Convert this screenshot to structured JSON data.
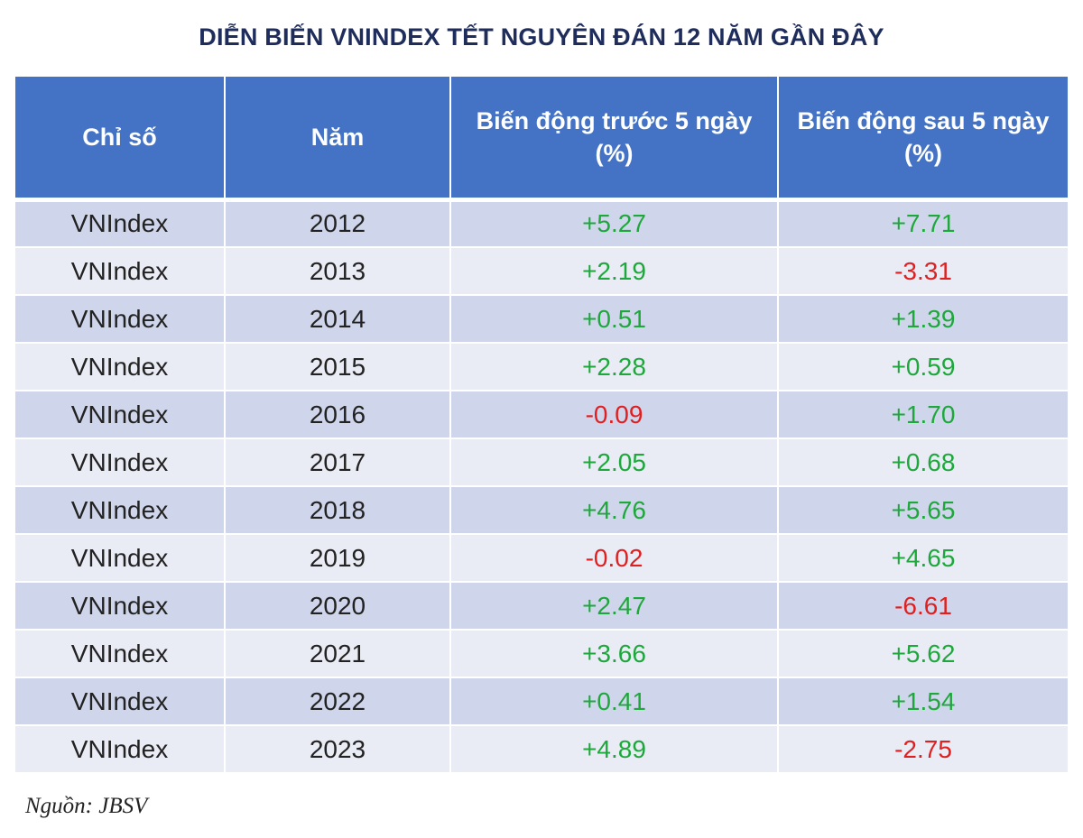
{
  "title": "DIỄN BIẾN VNINDEX TẾT NGUYÊN ĐÁN 12 NĂM GẦN ĐÂY",
  "source": "Nguồn: JBSV",
  "colors": {
    "header_bg": "#4472c4",
    "row_dark": "#cfd5ea",
    "row_light": "#e9ebf5",
    "positive": "#1ea83c",
    "negative": "#e02020",
    "title": "#1f2d5c"
  },
  "chart_data": {
    "type": "table",
    "title": "DIỄN BIẾN VNINDEX TẾT NGUYÊN ĐÁN 12 NĂM GẦN ĐÂY",
    "columns": [
      "Chỉ số",
      "Năm",
      "Biến động trước 5 ngày (%)",
      "Biến động sau 5 ngày (%)"
    ],
    "rows": [
      [
        "VNIndex",
        "2012",
        "+5.27",
        "+7.71"
      ],
      [
        "VNIndex",
        "2013",
        "+2.19",
        "-3.31"
      ],
      [
        "VNIndex",
        "2014",
        "+0.51",
        "+1.39"
      ],
      [
        "VNIndex",
        "2015",
        "+2.28",
        "+0.59"
      ],
      [
        "VNIndex",
        "2016",
        "-0.09",
        "+1.70"
      ],
      [
        "VNIndex",
        "2017",
        "+2.05",
        "+0.68"
      ],
      [
        "VNIndex",
        "2018",
        "+4.76",
        "+5.65"
      ],
      [
        "VNIndex",
        "2019",
        "-0.02",
        "+4.65"
      ],
      [
        "VNIndex",
        "2020",
        "+2.47",
        "-6.61"
      ],
      [
        "VNIndex",
        "2021",
        "+3.66",
        "+5.62"
      ],
      [
        "VNIndex",
        "2022",
        "+0.41",
        "+1.54"
      ],
      [
        "VNIndex",
        "2023",
        "+4.89",
        "-2.75"
      ]
    ],
    "source": "Nguồn: JBSV"
  }
}
